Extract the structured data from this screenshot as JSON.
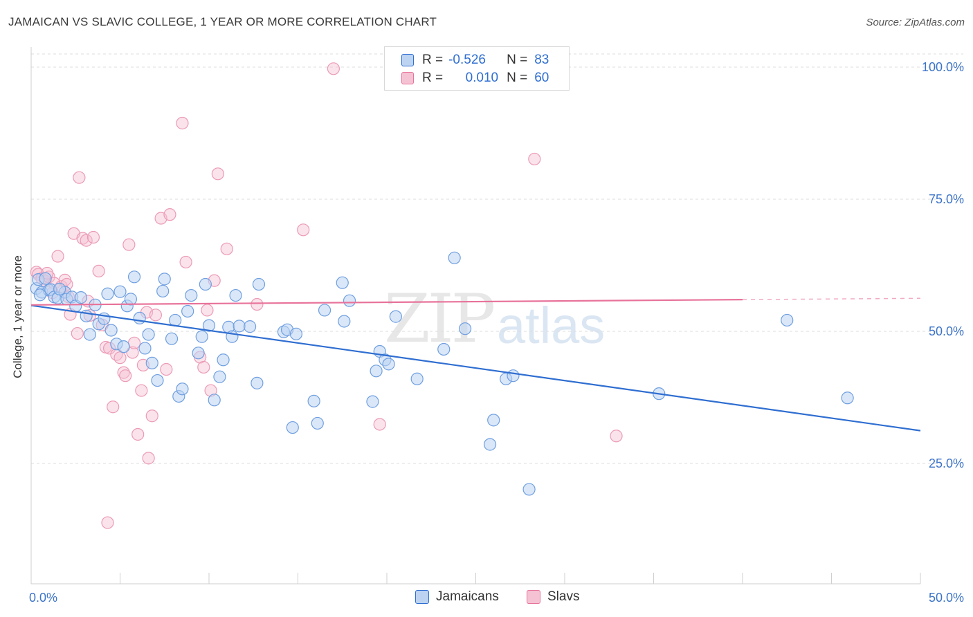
{
  "title": "JAMAICAN VS SLAVIC COLLEGE, 1 YEAR OR MORE CORRELATION CHART",
  "source": "Source: ZipAtlas.com",
  "watermark": {
    "zip": "ZIP",
    "atlas": "atlas"
  },
  "colors": {
    "blue": "#2f6ed1",
    "blue_fill": "#bcd3f2",
    "pink": "#e8739a",
    "pink_fill": "#f5c2d3",
    "tick_text": "#3d74c8"
  },
  "legend": [
    {
      "r_label": "R =",
      "r_value": "-0.526",
      "n_label": "N =",
      "n_value": "83"
    },
    {
      "r_label": "R =",
      "r_value": "0.010",
      "n_label": "N =",
      "n_value": "60"
    }
  ],
  "chart_data": {
    "type": "scatter",
    "title": "JAMAICAN VS SLAVIC COLLEGE, 1 YEAR OR MORE CORRELATION CHART",
    "xlabel": "",
    "ylabel": "College, 1 year or more",
    "xlim": [
      0,
      50
    ],
    "ylim": [
      0,
      105
    ],
    "x_tick_labels": [
      "0.0%",
      "50.0%"
    ],
    "y_ticks": [
      25,
      50,
      75,
      100
    ],
    "y_tick_labels": [
      "25.0%",
      "50.0%",
      "75.0%",
      "100.0%"
    ],
    "grid": true,
    "legend_position": "bottom",
    "series": [
      {
        "name": "Jamaicans",
        "trend": {
          "x": [
            0,
            50
          ],
          "y": [
            54.9,
            31.2
          ],
          "dashed_from": null
        },
        "points": [
          [
            0.3,
            58.1
          ],
          [
            0.4,
            59.8
          ],
          [
            0.6,
            57.4
          ],
          [
            0.8,
            60.0
          ],
          [
            1.0,
            57.8
          ],
          [
            1.1,
            57.9
          ],
          [
            1.3,
            56.5
          ],
          [
            1.5,
            56.3
          ],
          [
            1.9,
            57.4
          ],
          [
            2.0,
            56.1
          ],
          [
            2.3,
            56.5
          ],
          [
            2.5,
            54.8
          ],
          [
            2.8,
            56.4
          ],
          [
            3.1,
            52.9
          ],
          [
            3.3,
            49.4
          ],
          [
            3.6,
            55.0
          ],
          [
            3.8,
            51.4
          ],
          [
            4.1,
            52.4
          ],
          [
            4.3,
            57.1
          ],
          [
            4.5,
            50.2
          ],
          [
            4.8,
            47.6
          ],
          [
            5.0,
            57.5
          ],
          [
            5.2,
            47.1
          ],
          [
            5.4,
            54.8
          ],
          [
            5.6,
            56.1
          ],
          [
            5.8,
            60.3
          ],
          [
            6.1,
            52.5
          ],
          [
            6.4,
            46.8
          ],
          [
            6.6,
            49.4
          ],
          [
            6.8,
            44.0
          ],
          [
            7.1,
            40.7
          ],
          [
            7.4,
            57.6
          ],
          [
            7.5,
            59.9
          ],
          [
            7.9,
            48.6
          ],
          [
            8.1,
            52.1
          ],
          [
            8.3,
            37.7
          ],
          [
            8.5,
            39.1
          ],
          [
            8.8,
            53.8
          ],
          [
            9.0,
            56.8
          ],
          [
            9.4,
            45.9
          ],
          [
            9.6,
            49.0
          ],
          [
            9.8,
            58.9
          ],
          [
            10.0,
            51.1
          ],
          [
            10.3,
            37.0
          ],
          [
            10.6,
            41.4
          ],
          [
            10.8,
            44.6
          ],
          [
            11.1,
            50.8
          ],
          [
            11.3,
            49.0
          ],
          [
            11.5,
            56.8
          ],
          [
            11.7,
            51.0
          ],
          [
            12.3,
            50.9
          ],
          [
            12.7,
            40.2
          ],
          [
            12.8,
            58.9
          ],
          [
            14.2,
            49.9
          ],
          [
            14.4,
            50.3
          ],
          [
            14.7,
            31.8
          ],
          [
            14.9,
            49.5
          ],
          [
            15.9,
            36.8
          ],
          [
            16.1,
            32.6
          ],
          [
            16.5,
            54.0
          ],
          [
            17.5,
            59.2
          ],
          [
            17.6,
            51.9
          ],
          [
            17.9,
            55.8
          ],
          [
            19.2,
            36.7
          ],
          [
            19.4,
            42.5
          ],
          [
            19.6,
            46.2
          ],
          [
            19.9,
            44.6
          ],
          [
            20.1,
            43.8
          ],
          [
            20.5,
            52.8
          ],
          [
            21.7,
            41.0
          ],
          [
            23.2,
            46.6
          ],
          [
            23.8,
            63.9
          ],
          [
            24.4,
            50.5
          ],
          [
            25.8,
            28.6
          ],
          [
            26.0,
            33.2
          ],
          [
            26.7,
            41.0
          ],
          [
            27.1,
            41.6
          ],
          [
            28.0,
            20.1
          ],
          [
            35.3,
            38.2
          ],
          [
            42.5,
            52.1
          ],
          [
            45.9,
            37.4
          ],
          [
            0.5,
            56.9
          ],
          [
            1.6,
            58.0
          ]
        ]
      },
      {
        "name": "Slavs",
        "trend": {
          "x": [
            0,
            40
          ],
          "y": [
            55.0,
            56.0
          ],
          "dashed_from": 40,
          "dashed_to": 50
        },
        "points": [
          [
            0.3,
            61.2
          ],
          [
            0.4,
            60.8
          ],
          [
            0.6,
            60.0
          ],
          [
            0.8,
            59.5
          ],
          [
            1.0,
            60.3
          ],
          [
            1.3,
            59.1
          ],
          [
            1.5,
            64.2
          ],
          [
            1.7,
            58.5
          ],
          [
            1.9,
            59.7
          ],
          [
            2.0,
            58.9
          ],
          [
            2.2,
            53.2
          ],
          [
            2.4,
            68.5
          ],
          [
            2.6,
            49.6
          ],
          [
            2.7,
            79.1
          ],
          [
            2.9,
            67.6
          ],
          [
            3.1,
            67.2
          ],
          [
            3.3,
            53.0
          ],
          [
            3.5,
            67.8
          ],
          [
            3.8,
            61.4
          ],
          [
            4.0,
            51.2
          ],
          [
            4.2,
            47.0
          ],
          [
            4.4,
            46.8
          ],
          [
            4.6,
            35.7
          ],
          [
            4.8,
            45.6
          ],
          [
            5.0,
            45.0
          ],
          [
            5.2,
            42.2
          ],
          [
            5.3,
            41.6
          ],
          [
            5.5,
            66.4
          ],
          [
            5.7,
            46.0
          ],
          [
            5.8,
            47.8
          ],
          [
            6.0,
            30.5
          ],
          [
            6.2,
            38.8
          ],
          [
            6.3,
            43.6
          ],
          [
            6.5,
            53.6
          ],
          [
            6.6,
            26.0
          ],
          [
            6.8,
            34.0
          ],
          [
            7.0,
            53.1
          ],
          [
            7.3,
            71.4
          ],
          [
            7.6,
            42.8
          ],
          [
            7.8,
            72.1
          ],
          [
            8.5,
            89.4
          ],
          [
            8.7,
            63.1
          ],
          [
            9.5,
            45.1
          ],
          [
            9.7,
            43.2
          ],
          [
            9.9,
            54.0
          ],
          [
            10.1,
            38.8
          ],
          [
            10.3,
            59.6
          ],
          [
            10.5,
            79.8
          ],
          [
            11.0,
            65.6
          ],
          [
            12.7,
            55.1
          ],
          [
            15.3,
            69.2
          ],
          [
            17.0,
            99.7
          ],
          [
            19.6,
            32.4
          ],
          [
            28.3,
            82.6
          ],
          [
            32.9,
            30.2
          ],
          [
            4.3,
            13.8
          ],
          [
            2.1,
            56.5
          ],
          [
            3.2,
            55.7
          ],
          [
            1.2,
            57.3
          ],
          [
            0.9,
            61.0
          ]
        ]
      }
    ]
  },
  "bottom_legend": [
    "Jamaicans",
    "Slavs"
  ]
}
